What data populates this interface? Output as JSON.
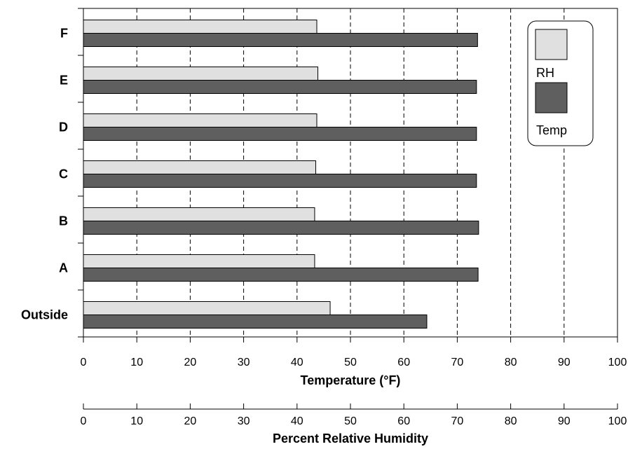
{
  "chart_data": {
    "type": "bar",
    "orientation": "horizontal",
    "categories": [
      "Outside",
      "A",
      "B",
      "C",
      "D",
      "E",
      "F"
    ],
    "series": [
      {
        "name": "RH",
        "color": "#e0e0e0",
        "values": [
          46.2,
          43.3,
          43.3,
          43.5,
          43.7,
          43.9,
          43.7
        ]
      },
      {
        "name": "Temp",
        "color": "#5f5f5f",
        "values": [
          64.3,
          73.9,
          74.0,
          73.6,
          73.6,
          73.6,
          73.8
        ]
      }
    ],
    "xaxis_primary": {
      "label": "Temperature (°F)",
      "min": 0,
      "max": 100,
      "ticks": [
        0,
        10,
        20,
        30,
        40,
        50,
        60,
        70,
        80,
        90,
        100
      ]
    },
    "xaxis_secondary": {
      "label": "Percent Relative Humidity",
      "min": 0,
      "max": 100,
      "ticks": [
        0,
        10,
        20,
        30,
        40,
        50,
        60,
        70,
        80,
        90,
        100
      ]
    },
    "grid": "vertical dashed",
    "legend_position": "top-right"
  }
}
